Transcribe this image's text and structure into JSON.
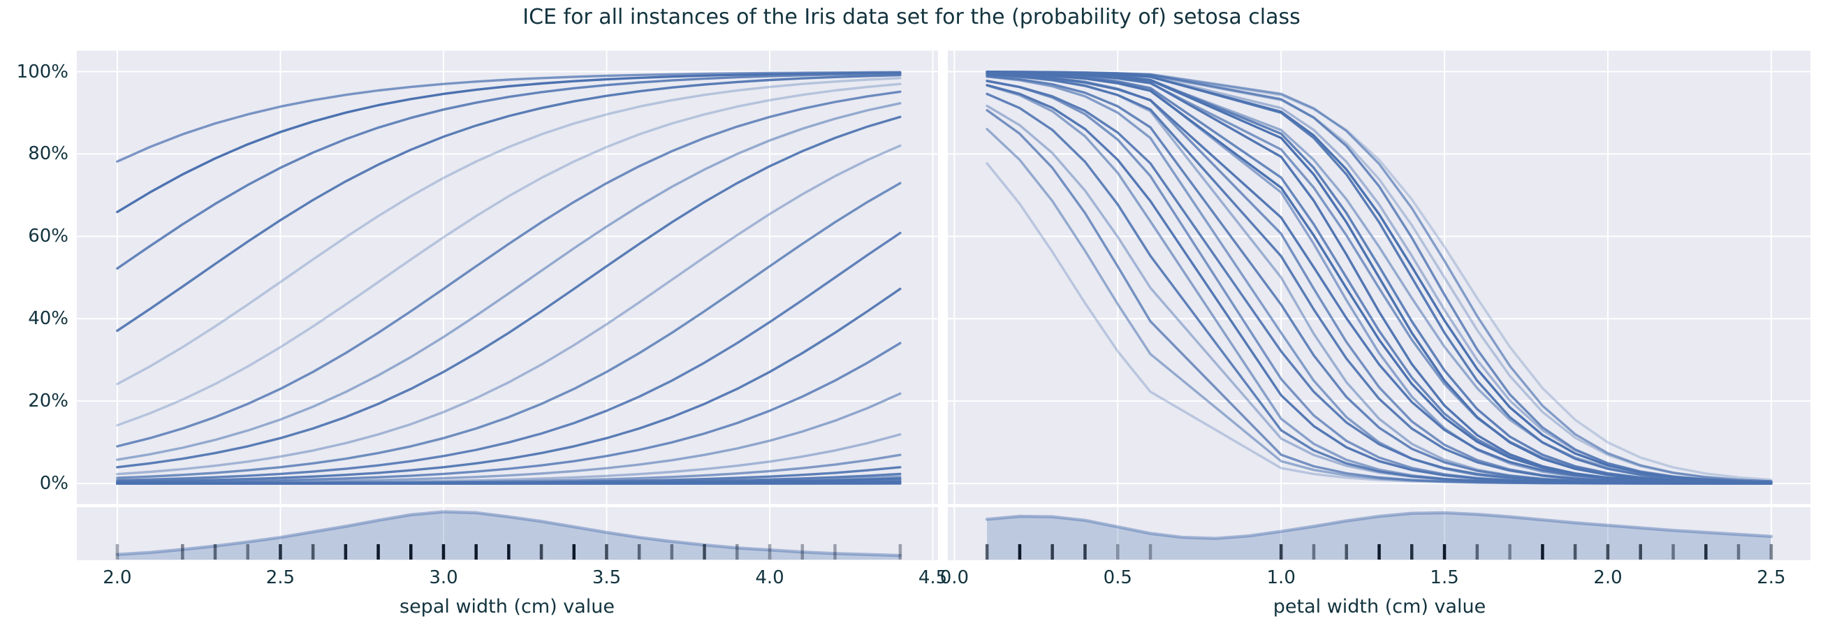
{
  "title": "ICE for all instances of the Iris data set for the (probability of) setosa class",
  "colors": {
    "figure_background": "#ffffff",
    "panel_background": "#e9eaf2",
    "grid": "#ffffff",
    "line": "#4c72b0",
    "text": "#12333e",
    "rug": "#0e1a2b",
    "kde_fill_alpha": 0.28,
    "kde_stroke_alpha": 0.45
  },
  "y_axis": {
    "tick_labels": [
      "0%",
      "20%",
      "40%",
      "60%",
      "80%",
      "100%"
    ],
    "tick_values": [
      0,
      0.2,
      0.4,
      0.6,
      0.8,
      1.0
    ]
  },
  "chart_data": [
    {
      "type": "line",
      "name": "ice-sepal-width",
      "xlabel": "sepal width (cm) value",
      "ylabel": "",
      "x_tick_labels": [
        "2.0",
        "2.5",
        "3.0",
        "3.5",
        "4.0",
        "4.5"
      ],
      "x_ticks": [
        2.0,
        2.5,
        3.0,
        3.5,
        4.0,
        4.5
      ],
      "xlim": [
        1.876,
        4.516
      ],
      "ylim": [
        -0.05,
        1.05
      ],
      "grid": true,
      "legend": false,
      "curve_model": "p(x) = 1/(1+exp(-k*(x-x0)))",
      "sample_x": [
        2.0,
        2.1,
        2.2,
        2.3,
        2.4,
        2.5,
        2.6,
        2.7,
        2.8,
        2.9,
        3.0,
        3.1,
        3.2,
        3.3,
        3.4,
        3.5,
        3.6,
        3.7,
        3.8,
        3.9,
        4.0,
        4.1,
        4.2,
        4.3,
        4.4
      ],
      "ice_curves": [
        {
          "x0": 1.42,
          "k": 2.2,
          "alpha": 0.72
        },
        {
          "x0": 1.7,
          "k": 2.2,
          "alpha": 1.0
        },
        {
          "x0": 1.96,
          "k": 2.2,
          "alpha": 0.85
        },
        {
          "x0": 2.24,
          "k": 2.2,
          "alpha": 0.92
        },
        {
          "x0": 2.52,
          "k": 2.2,
          "alpha": 0.33
        },
        {
          "x0": 2.82,
          "k": 2.2,
          "alpha": 0.33
        },
        {
          "x0": 3.05,
          "k": 2.2,
          "alpha": 0.8
        },
        {
          "x0": 3.27,
          "k": 2.2,
          "alpha": 0.55
        },
        {
          "x0": 3.45,
          "k": 2.2,
          "alpha": 0.92
        },
        {
          "x0": 3.71,
          "k": 2.2,
          "alpha": 0.45
        },
        {
          "x0": 3.95,
          "k": 2.2,
          "alpha": 0.78
        },
        {
          "x0": 4.2,
          "k": 2.2,
          "alpha": 0.88
        },
        {
          "x0": 4.45,
          "k": 2.2,
          "alpha": 0.92
        },
        {
          "x0": 4.7,
          "k": 2.2,
          "alpha": 0.8
        },
        {
          "x0": 4.98,
          "k": 2.2,
          "alpha": 0.58
        },
        {
          "x0": 5.31,
          "k": 2.2,
          "alpha": 0.45
        },
        {
          "x0": 5.58,
          "k": 2.2,
          "alpha": 0.68
        },
        {
          "x0": 5.85,
          "k": 2.2,
          "alpha": 0.9
        },
        {
          "x0": 6.1,
          "k": 2.2,
          "alpha": 0.9
        },
        {
          "x0": 6.25,
          "k": 2.2,
          "alpha": 0.6
        },
        {
          "x0": 6.4,
          "k": 2.2,
          "alpha": 1.0
        },
        {
          "x0": 6.55,
          "k": 2.2,
          "alpha": 0.75
        },
        {
          "x0": 6.7,
          "k": 2.2,
          "alpha": 0.5
        },
        {
          "x0": 6.85,
          "k": 2.2,
          "alpha": 0.95
        },
        {
          "x0": 7.0,
          "k": 2.2,
          "alpha": 0.7
        },
        {
          "x0": 7.15,
          "k": 2.2,
          "alpha": 1.0
        },
        {
          "x0": 7.3,
          "k": 2.2,
          "alpha": 0.6
        },
        {
          "x0": 7.5,
          "k": 2.2,
          "alpha": 0.85
        },
        {
          "x0": 7.7,
          "k": 2.2,
          "alpha": 1.0
        },
        {
          "x0": 7.9,
          "k": 2.2,
          "alpha": 0.7
        },
        {
          "x0": 8.1,
          "k": 2.2,
          "alpha": 0.9
        },
        {
          "x0": 8.3,
          "k": 2.2,
          "alpha": 0.8
        }
      ],
      "rug": {
        "values": [
          2.0,
          2.2,
          2.3,
          2.4,
          2.5,
          2.6,
          2.7,
          2.8,
          2.9,
          3.0,
          3.1,
          3.2,
          3.3,
          3.4,
          3.5,
          3.6,
          3.7,
          3.8,
          3.9,
          4.0,
          4.1,
          4.2,
          4.4
        ],
        "alphas": [
          0.36,
          0.5,
          0.58,
          0.5,
          0.88,
          0.66,
          0.96,
          1,
          1,
          1,
          1,
          1,
          0.73,
          1,
          0.73,
          0.58,
          0.5,
          0.73,
          0.43,
          0.36,
          0.36,
          0.36,
          0.36
        ]
      },
      "kde": {
        "x": [
          2.0,
          2.1,
          2.2,
          2.3,
          2.4,
          2.5,
          2.6,
          2.7,
          2.8,
          2.9,
          3.0,
          3.1,
          3.2,
          3.3,
          3.4,
          3.5,
          3.6,
          3.7,
          3.8,
          3.9,
          4.0,
          4.1,
          4.2,
          4.3,
          4.4
        ],
        "height": [
          0.1,
          0.14,
          0.2,
          0.27,
          0.35,
          0.44,
          0.55,
          0.66,
          0.78,
          0.89,
          0.95,
          0.93,
          0.85,
          0.76,
          0.65,
          0.54,
          0.44,
          0.36,
          0.29,
          0.23,
          0.19,
          0.15,
          0.12,
          0.1,
          0.08
        ]
      }
    },
    {
      "type": "line",
      "name": "ice-petal-width",
      "xlabel": "petal width (cm) value",
      "ylabel": "",
      "x_tick_labels": [
        "0.0",
        "0.5",
        "1.0",
        "1.5",
        "2.0",
        "2.5"
      ],
      "x_ticks": [
        0.0,
        0.5,
        1.0,
        1.5,
        2.0,
        2.5
      ],
      "xlim": [
        -0.02,
        2.62
      ],
      "ylim": [
        -0.05,
        1.05
      ],
      "grid": true,
      "legend": false,
      "curve_model": "p(x) = 1/(1+exp(-k*(x-x0))), k negative (descending)",
      "sample_x": [
        0.1,
        0.2,
        0.3,
        0.4,
        0.5,
        0.6,
        1.0,
        1.1,
        1.2,
        1.3,
        1.4,
        1.5,
        1.6,
        1.7,
        1.8,
        1.9,
        2.0,
        2.1,
        2.2,
        2.3,
        2.4,
        2.5
      ],
      "ice_curves": [
        {
          "x0": 0.35,
          "k": -5.0,
          "alpha": 0.3
        },
        {
          "x0": 0.45,
          "k": -5.2,
          "alpha": 0.55
        },
        {
          "x0": 0.52,
          "k": -5.4,
          "alpha": 0.75
        },
        {
          "x0": 0.58,
          "k": -5.0,
          "alpha": 0.45
        },
        {
          "x0": 0.64,
          "k": -5.3,
          "alpha": 0.88
        },
        {
          "x0": 0.7,
          "k": -5.6,
          "alpha": 0.62
        },
        {
          "x0": 0.75,
          "k": -5.2,
          "alpha": 0.95
        },
        {
          "x0": 0.8,
          "k": -5.4,
          "alpha": 0.72
        },
        {
          "x0": 0.85,
          "k": -5.0,
          "alpha": 0.9
        },
        {
          "x0": 0.9,
          "k": -5.5,
          "alpha": 0.65
        },
        {
          "x0": 0.95,
          "k": -5.3,
          "alpha": 0.85
        },
        {
          "x0": 1.0,
          "k": -5.6,
          "alpha": 0.5
        },
        {
          "x0": 1.04,
          "k": -5.2,
          "alpha": 0.92
        },
        {
          "x0": 1.08,
          "k": -5.4,
          "alpha": 0.75
        },
        {
          "x0": 1.12,
          "k": -5.0,
          "alpha": 0.95
        },
        {
          "x0": 1.16,
          "k": -5.5,
          "alpha": 0.6
        },
        {
          "x0": 1.2,
          "k": -5.3,
          "alpha": 0.82
        },
        {
          "x0": 1.24,
          "k": -5.6,
          "alpha": 0.97
        },
        {
          "x0": 1.28,
          "k": -5.2,
          "alpha": 0.7
        },
        {
          "x0": 1.32,
          "k": -5.4,
          "alpha": 0.88
        },
        {
          "x0": 1.36,
          "k": -5.0,
          "alpha": 0.55
        },
        {
          "x0": 1.4,
          "k": -5.5,
          "alpha": 0.92
        },
        {
          "x0": 1.44,
          "k": -5.3,
          "alpha": 0.45
        },
        {
          "x0": 1.47,
          "k": -5.6,
          "alpha": 0.8
        },
        {
          "x0": 1.5,
          "k": -5.2,
          "alpha": 0.35
        },
        {
          "x0": 1.53,
          "k": -5.4,
          "alpha": 0.65
        },
        {
          "x0": 1.56,
          "k": -5.0,
          "alpha": 0.28
        },
        {
          "x0": 1.42,
          "k": -5.3,
          "alpha": 1.0
        },
        {
          "x0": 1.3,
          "k": -5.5,
          "alpha": 1.0
        },
        {
          "x0": 1.18,
          "k": -5.2,
          "alpha": 1.0
        }
      ],
      "rug": {
        "values": [
          0.1,
          0.2,
          0.3,
          0.4,
          0.5,
          0.6,
          1.0,
          1.1,
          1.2,
          1.3,
          1.4,
          1.5,
          1.6,
          1.7,
          1.8,
          1.9,
          2.0,
          2.1,
          2.2,
          2.3,
          2.4,
          2.5
        ],
        "alphas": [
          0.66,
          1,
          0.8,
          0.8,
          0.36,
          0.36,
          0.8,
          0.5,
          0.66,
          1,
          0.88,
          1,
          0.58,
          0.43,
          1,
          0.66,
          0.73,
          0.73,
          0.5,
          0.88,
          0.5,
          0.5
        ]
      },
      "kde": {
        "x": [
          0.1,
          0.2,
          0.3,
          0.4,
          0.5,
          0.6,
          0.7,
          0.8,
          0.9,
          1.0,
          1.1,
          1.2,
          1.3,
          1.4,
          1.5,
          1.6,
          1.7,
          1.8,
          1.9,
          2.0,
          2.1,
          2.2,
          2.3,
          2.4,
          2.5
        ],
        "height": [
          0.8,
          0.86,
          0.85,
          0.78,
          0.65,
          0.52,
          0.44,
          0.42,
          0.47,
          0.56,
          0.66,
          0.77,
          0.86,
          0.92,
          0.93,
          0.9,
          0.85,
          0.79,
          0.73,
          0.68,
          0.63,
          0.58,
          0.54,
          0.5,
          0.46
        ]
      }
    }
  ]
}
